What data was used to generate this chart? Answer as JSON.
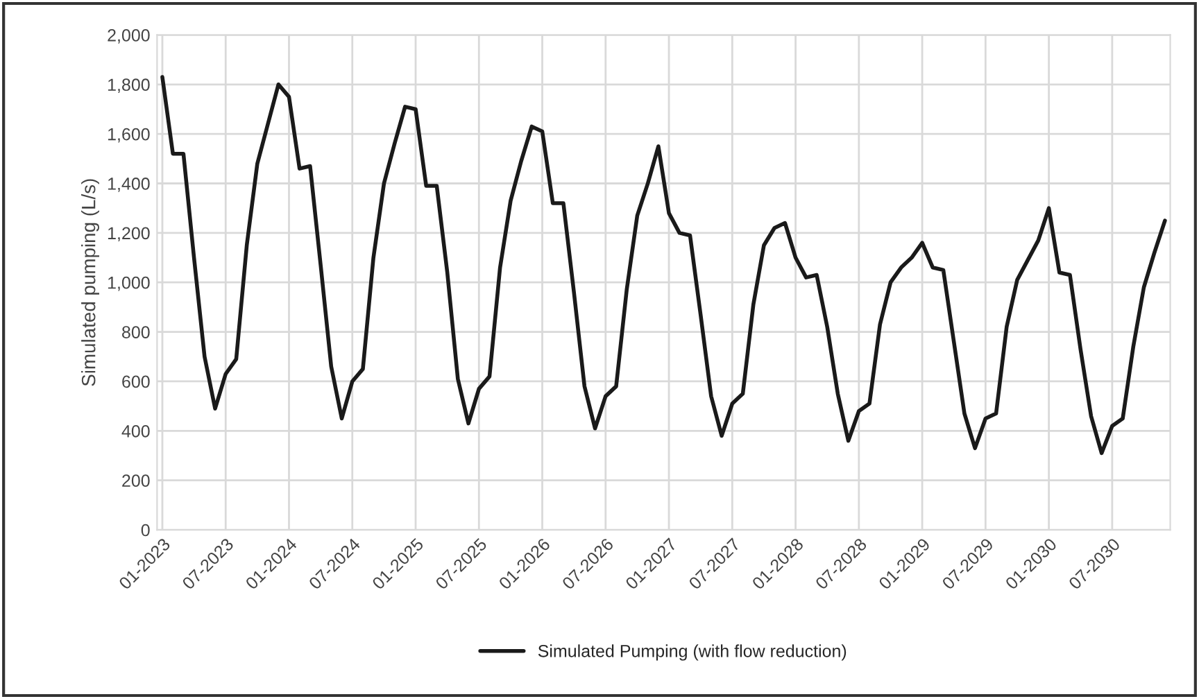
{
  "chart_data": {
    "type": "line",
    "ylabel": "Simulated pumping (L/s)",
    "categories": [
      "01-2023",
      null,
      null,
      null,
      null,
      null,
      "07-2023",
      null,
      null,
      null,
      null,
      null,
      "01-2024",
      null,
      null,
      null,
      null,
      null,
      "07-2024",
      null,
      null,
      null,
      null,
      null,
      "01-2025",
      null,
      null,
      null,
      null,
      null,
      "07-2025",
      null,
      null,
      null,
      null,
      null,
      "01-2026",
      null,
      null,
      null,
      null,
      null,
      "07-2026",
      null,
      null,
      null,
      null,
      null,
      "01-2027",
      null,
      null,
      null,
      null,
      null,
      "07-2027",
      null,
      null,
      null,
      null,
      null,
      "01-2028",
      null,
      null,
      null,
      null,
      null,
      "07-2028",
      null,
      null,
      null,
      null,
      null,
      "01-2029",
      null,
      null,
      null,
      null,
      null,
      "07-2029",
      null,
      null,
      null,
      null,
      null,
      "01-2030",
      null,
      null,
      null,
      null,
      null,
      "07-2030",
      null,
      null,
      null,
      null,
      null
    ],
    "series": [
      {
        "name": "Simulated Pumping (with flow reduction)",
        "color": "#1a1a1a",
        "values": [
          1830,
          1520,
          1520,
          1100,
          700,
          490,
          630,
          690,
          1150,
          1480,
          1640,
          1800,
          1750,
          1460,
          1470,
          1070,
          660,
          450,
          600,
          650,
          1100,
          1400,
          1560,
          1710,
          1700,
          1390,
          1390,
          1040,
          610,
          430,
          570,
          620,
          1060,
          1330,
          1490,
          1630,
          1610,
          1320,
          1320,
          960,
          580,
          410,
          540,
          580,
          970,
          1270,
          1400,
          1550,
          1280,
          1200,
          1190,
          870,
          540,
          380,
          510,
          550,
          910,
          1150,
          1220,
          1240,
          1100,
          1020,
          1030,
          820,
          550,
          360,
          480,
          510,
          830,
          1000,
          1060,
          1100,
          1160,
          1060,
          1050,
          760,
          470,
          330,
          450,
          470,
          820,
          1010,
          1090,
          1170,
          1300,
          1040,
          1030,
          730,
          460,
          310,
          420,
          450,
          740,
          980,
          1120,
          1250
        ]
      }
    ],
    "ylim": [
      0,
      2000
    ],
    "yticks": [
      0,
      200,
      400,
      600,
      800,
      {
        "value": 1000,
        "label": "1,000"
      },
      {
        "value": 1200,
        "label": "1,200"
      },
      {
        "value": 1400,
        "label": "1,400"
      },
      {
        "value": 1600,
        "label": "1,600"
      },
      {
        "value": 1800,
        "label": "1,800"
      },
      {
        "value": 2000,
        "label": "2,000"
      }
    ],
    "grid": true,
    "legend": "bottom",
    "marker": "none",
    "line_style": "solid"
  }
}
